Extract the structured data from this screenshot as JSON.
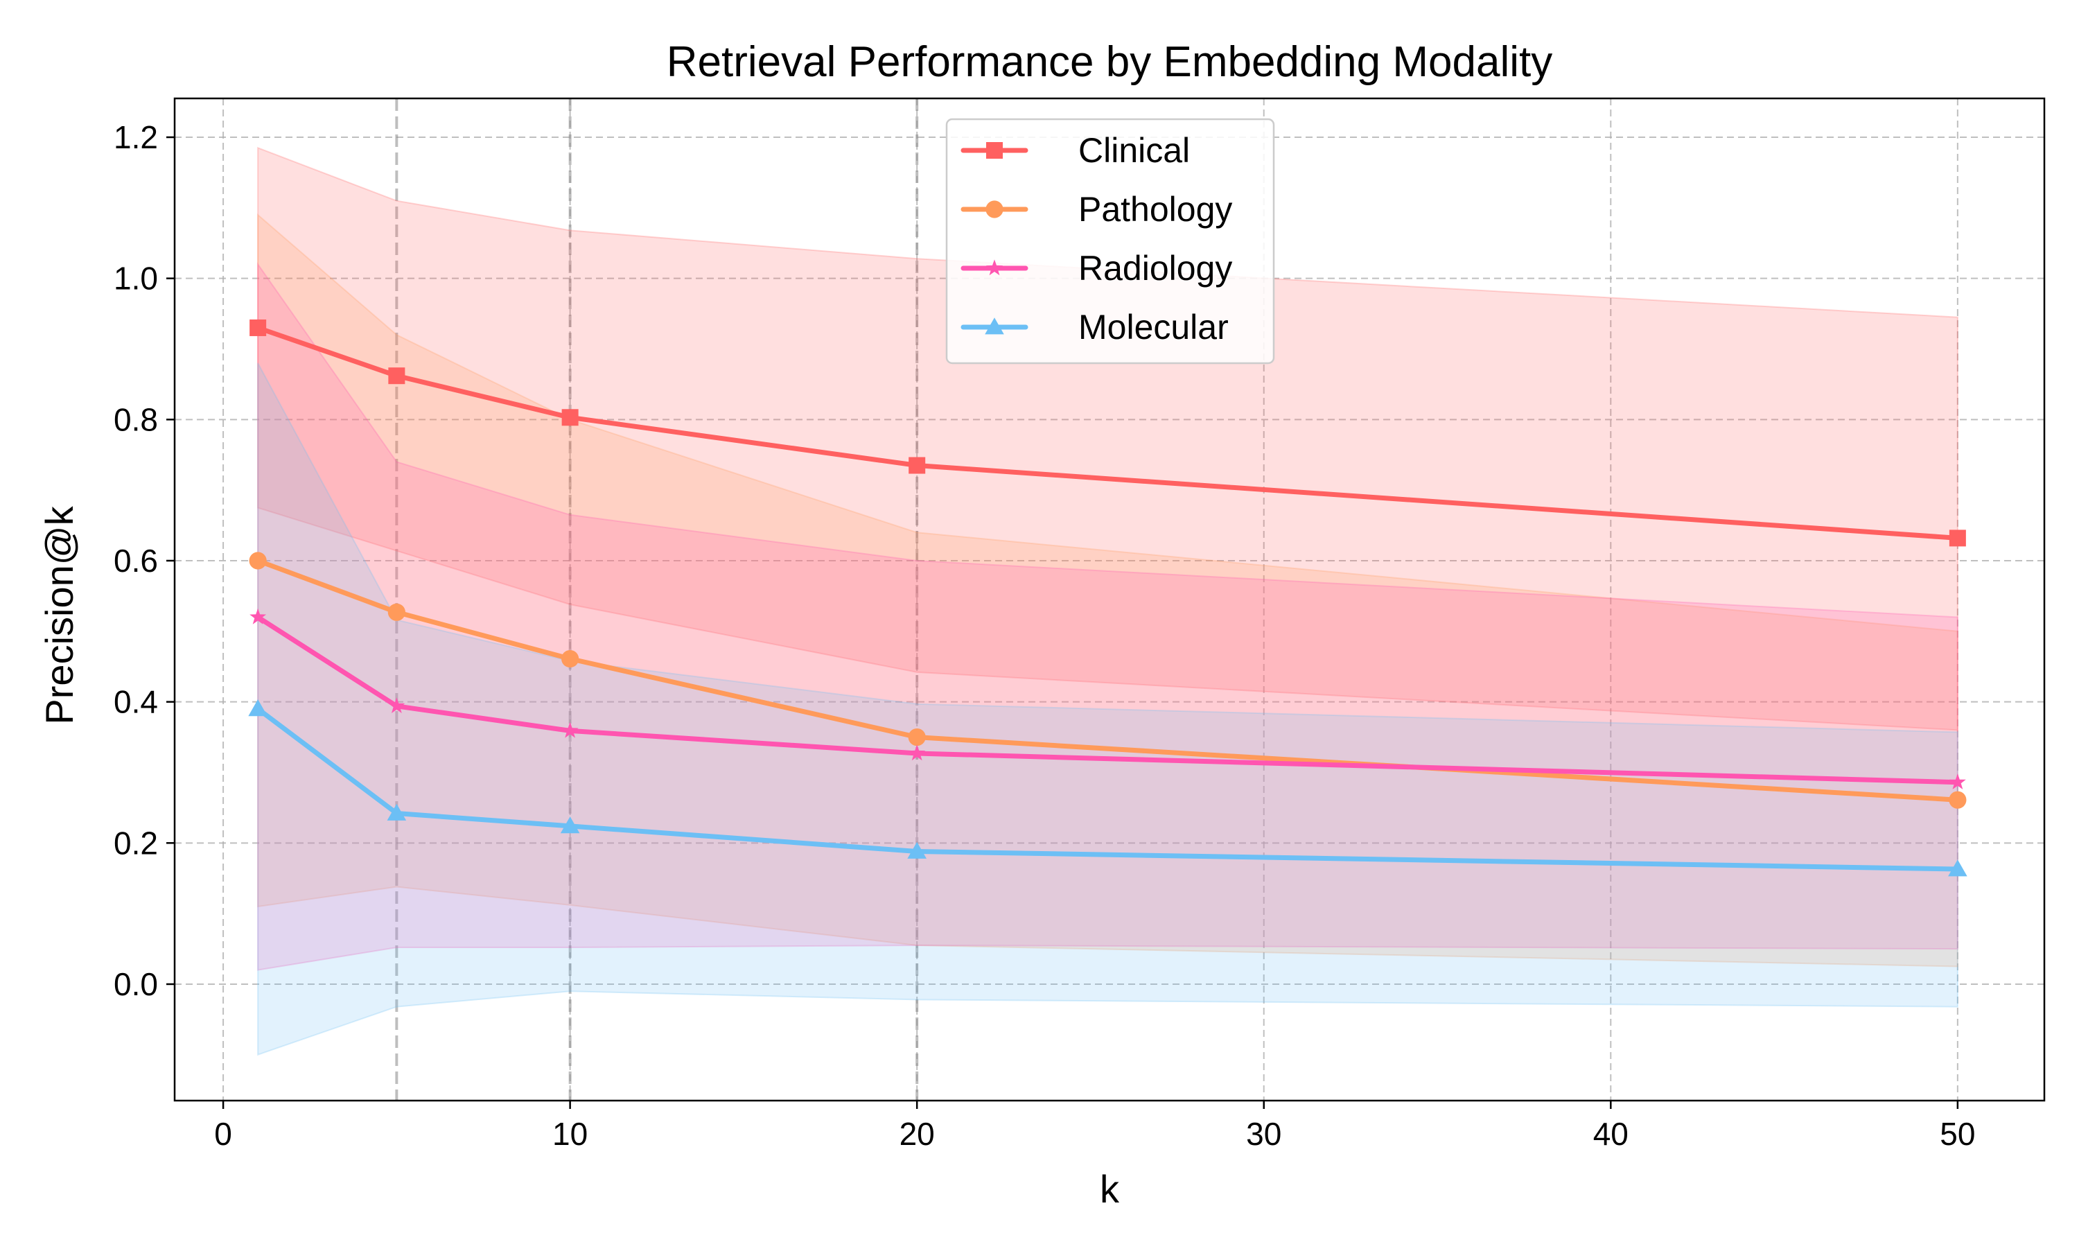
{
  "chart_data": {
    "type": "line",
    "title": "Retrieval Performance by Embedding Modality",
    "xlabel": "k",
    "ylabel": "Precision@k",
    "x": [
      1,
      5,
      10,
      20,
      50
    ],
    "xlim": [
      -1.4,
      52.5
    ],
    "ylim": [
      -0.165,
      1.255
    ],
    "xticks": [
      0,
      10,
      20,
      30,
      40,
      50
    ],
    "yticks": [
      0.0,
      0.2,
      0.4,
      0.6,
      0.8,
      1.0,
      1.2
    ],
    "xtick_labels": [
      "0",
      "10",
      "20",
      "30",
      "40",
      "50"
    ],
    "ytick_labels": [
      "0.0",
      "0.2",
      "0.4",
      "0.6",
      "0.8",
      "1.0",
      "1.2"
    ],
    "grid": true,
    "grid_style": "dashed",
    "reference_lines_x": [
      5,
      10,
      20
    ],
    "legend_position": "top-center",
    "series": [
      {
        "name": "Clinical",
        "color": "#ff6060",
        "marker": "square",
        "values": [
          0.93,
          0.862,
          0.803,
          0.735,
          0.632
        ],
        "band_upper": [
          1.185,
          1.11,
          1.068,
          1.028,
          0.945
        ],
        "band_lower": [
          0.675,
          0.614,
          0.538,
          0.442,
          0.36
        ]
      },
      {
        "name": "Pathology",
        "color": "#ff9a5a",
        "marker": "circle",
        "values": [
          0.6,
          0.527,
          0.461,
          0.35,
          0.261
        ],
        "band_upper": [
          1.09,
          0.92,
          0.8,
          0.64,
          0.5
        ],
        "band_lower": [
          0.11,
          0.138,
          0.112,
          0.055,
          0.025
        ]
      },
      {
        "name": "Radiology",
        "color": "#ff55b0",
        "marker": "star",
        "values": [
          0.52,
          0.394,
          0.359,
          0.327,
          0.286
        ],
        "band_upper": [
          1.02,
          0.74,
          0.665,
          0.6,
          0.52
        ],
        "band_lower": [
          0.02,
          0.052,
          0.052,
          0.055,
          0.05
        ]
      },
      {
        "name": "Molecular",
        "color": "#6cbff5",
        "marker": "triangle",
        "values": [
          0.39,
          0.242,
          0.224,
          0.188,
          0.163
        ],
        "band_upper": [
          0.88,
          0.516,
          0.458,
          0.397,
          0.357
        ],
        "band_lower": [
          -0.1,
          -0.032,
          -0.01,
          -0.022,
          -0.032
        ]
      }
    ]
  }
}
